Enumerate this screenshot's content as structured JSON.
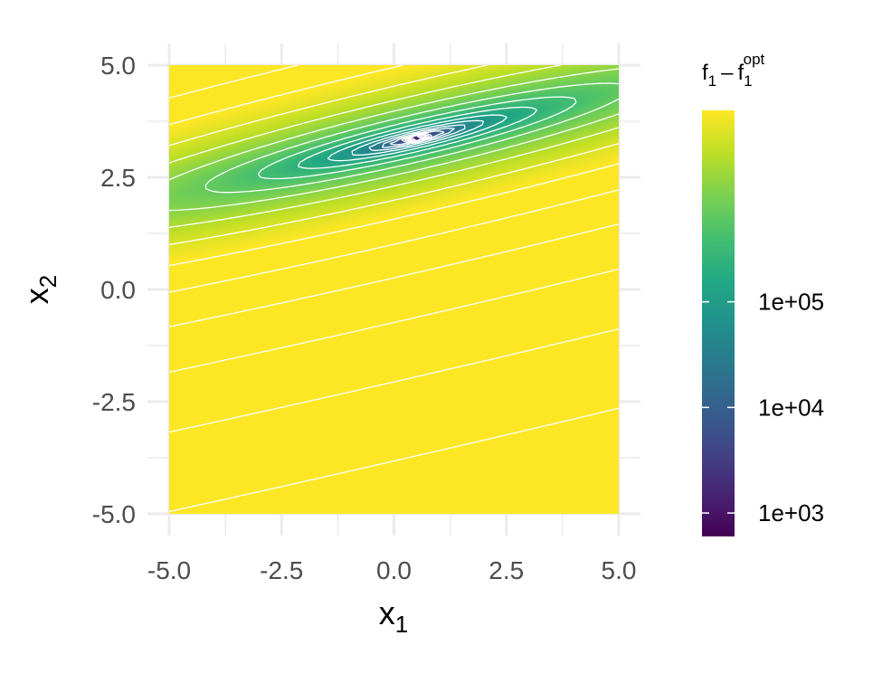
{
  "chart_data": {
    "type": "heatmap",
    "title": "",
    "x": {
      "label_base": "x",
      "label_sub": "1",
      "range": [
        -5,
        5
      ],
      "ticks": [
        -5,
        -2.5,
        0,
        2.5,
        5
      ],
      "tick_labels": [
        "-5.0",
        "-2.5",
        "0.0",
        "2.5",
        "5.0"
      ],
      "minor_ticks": [
        -3.75,
        -1.25,
        1.25,
        3.75
      ]
    },
    "y": {
      "label_base": "x",
      "label_sub": "2",
      "range": [
        -5,
        5
      ],
      "ticks": [
        -5,
        -2.5,
        0,
        2.5,
        5
      ],
      "tick_labels": [
        "-5.0",
        "-2.5",
        "0.0",
        "2.5",
        "5.0"
      ],
      "minor_ticks": [
        -3.75,
        -1.25,
        1.25,
        3.75
      ]
    },
    "fill": {
      "variable_base": "f",
      "variable_sub": "1",
      "minus": "–",
      "opt_base": "f",
      "opt_sub": "1",
      "opt_sup": "opt",
      "scale": "log10",
      "palette": "viridis",
      "range": [
        600,
        6500000
      ],
      "breaks": [
        1000,
        10000,
        100000
      ],
      "break_labels": [
        "1e+03",
        "1e+04",
        "1e+05"
      ]
    },
    "surface": {
      "optimum": [
        0.52,
        3.38
      ],
      "contour_levels": 20,
      "contour_color": "#ffffff",
      "grid": true
    }
  }
}
